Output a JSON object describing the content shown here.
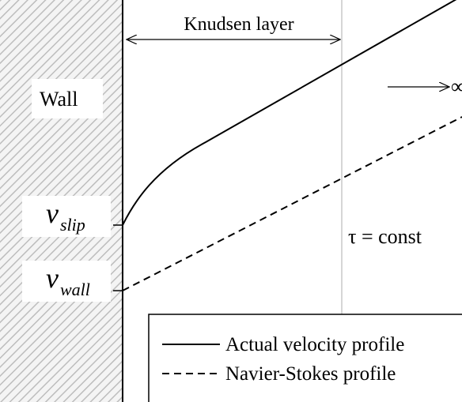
{
  "knudsen_layer": "Knudsen layer",
  "wall": "Wall",
  "infinity": "∞",
  "v_slip": {
    "symbol": "v",
    "subscript": "slip"
  },
  "v_wall": {
    "symbol": "v",
    "subscript": "wall"
  },
  "shear": "τ = const",
  "legend": {
    "items": [
      "Actual velocity profile",
      "Navier-Stokes profile"
    ]
  }
}
